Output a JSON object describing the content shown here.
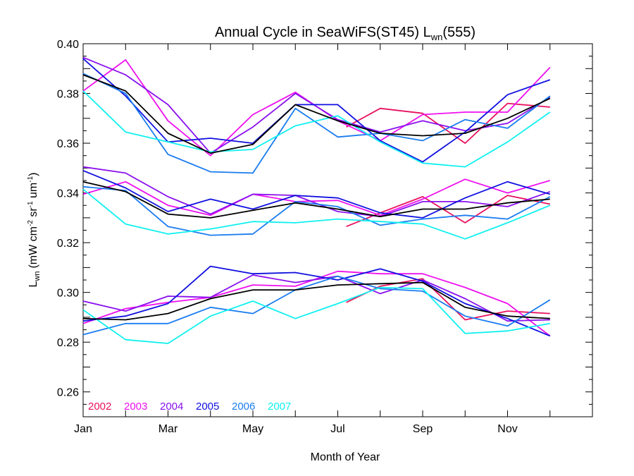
{
  "chart_data": {
    "type": "line",
    "title": {
      "main": "Annual Cycle in SeaWiFS(ST45) L",
      "sub": "wn",
      "tail": "(555)"
    },
    "xlabel": "Month of Year",
    "ylabel": {
      "main": "L",
      "sub": "wn",
      "unit": "(mW cm",
      "sup1": "-2",
      "mid1": " sr",
      "sup2": "-1",
      "mid2": " um",
      "sup3": "-1",
      "end": ")"
    },
    "xlim": [
      1,
      13
    ],
    "ylim": [
      0.25,
      0.4
    ],
    "x_ticks": [
      {
        "value": 1,
        "label": "Jan"
      },
      {
        "value": 3,
        "label": "Mar"
      },
      {
        "value": 5,
        "label": "May"
      },
      {
        "value": 7,
        "label": "Jul"
      },
      {
        "value": 9,
        "label": "Sep"
      },
      {
        "value": 11,
        "label": "Nov"
      }
    ],
    "y_ticks": [
      {
        "value": 0.26,
        "label": "0.26"
      },
      {
        "value": 0.28,
        "label": "0.28"
      },
      {
        "value": 0.3,
        "label": "0.30"
      },
      {
        "value": 0.32,
        "label": "0.32"
      },
      {
        "value": 0.34,
        "label": "0.34"
      },
      {
        "value": 0.36,
        "label": "0.36"
      },
      {
        "value": 0.38,
        "label": "0.38"
      },
      {
        "value": 0.4,
        "label": "0.40"
      }
    ],
    "legend": [
      {
        "name": "2002",
        "color": "#e8105e"
      },
      {
        "name": "2003",
        "color": "#ee10ee"
      },
      {
        "name": "2004",
        "color": "#8a10ee"
      },
      {
        "name": "2005",
        "color": "#1010e0"
      },
      {
        "name": "2006",
        "color": "#1a7cf0"
      },
      {
        "name": "2007",
        "color": "#10f0f0"
      }
    ],
    "legend_position": "bottom-left",
    "series": [
      {
        "year": "2002",
        "color": "#e8105e",
        "x": [
          7.2,
          8,
          9,
          10,
          11,
          12
        ],
        "y": [
          0.3665,
          0.374,
          0.372,
          0.36,
          0.376,
          0.3745
        ]
      },
      {
        "year": "2003",
        "color": "#ee10ee",
        "x": [
          1,
          2,
          3,
          4,
          5,
          6,
          7,
          8,
          9,
          10,
          11,
          12
        ],
        "y": [
          0.381,
          0.3935,
          0.369,
          0.355,
          0.3715,
          0.3805,
          0.369,
          0.361,
          0.3715,
          0.3725,
          0.3725,
          0.3905
        ]
      },
      {
        "year": "2004",
        "color": "#8a10ee",
        "x": [
          1,
          2,
          3,
          4,
          5,
          6,
          7,
          8,
          9,
          10,
          11,
          12
        ],
        "y": [
          0.3945,
          0.3875,
          0.3755,
          0.356,
          0.3665,
          0.38,
          0.3695,
          0.3645,
          0.369,
          0.365,
          0.368,
          0.3785
        ]
      },
      {
        "year": "2005",
        "color": "#1010e0",
        "x": [
          1,
          2,
          3,
          4,
          5,
          6,
          7,
          8,
          9,
          10,
          11,
          12
        ],
        "y": [
          0.394,
          0.379,
          0.3605,
          0.362,
          0.36,
          0.3755,
          0.3755,
          0.361,
          0.3525,
          0.3645,
          0.3795,
          0.3855
        ]
      },
      {
        "year": "2006",
        "color": "#1a7cf0",
        "x": [
          1,
          2,
          3,
          4,
          5,
          6,
          7,
          8,
          9,
          10,
          11,
          12
        ],
        "y": [
          0.388,
          0.38,
          0.3555,
          0.3485,
          0.348,
          0.374,
          0.3625,
          0.364,
          0.361,
          0.3695,
          0.366,
          0.379
        ]
      },
      {
        "year": "2007",
        "color": "#10f0f0",
        "x": [
          1,
          2,
          3,
          4,
          5,
          6,
          7,
          8,
          9,
          10,
          11,
          12
        ],
        "y": [
          0.381,
          0.3645,
          0.3605,
          0.3565,
          0.3575,
          0.367,
          0.371,
          0.3605,
          0.352,
          0.3505,
          0.3605,
          0.3725
        ]
      },
      {
        "year": "mean",
        "color": "#000000",
        "x": [
          1,
          2,
          3,
          4,
          5,
          6,
          7,
          8,
          9,
          10,
          11,
          12
        ],
        "y": [
          0.3875,
          0.381,
          0.364,
          0.356,
          0.3595,
          0.3755,
          0.369,
          0.364,
          0.363,
          0.364,
          0.37,
          0.378
        ]
      },
      {
        "year": "2002",
        "color": "#e8105e",
        "x": [
          7.2,
          8,
          9,
          10,
          11,
          12
        ],
        "y": [
          0.3265,
          0.332,
          0.3385,
          0.328,
          0.339,
          0.3355
        ]
      },
      {
        "year": "2003",
        "color": "#ee10ee",
        "x": [
          1,
          2,
          3,
          4,
          5,
          6,
          7,
          8,
          9,
          10,
          11,
          12
        ],
        "y": [
          0.3395,
          0.3445,
          0.335,
          0.331,
          0.3395,
          0.3365,
          0.337,
          0.331,
          0.3375,
          0.3455,
          0.34,
          0.345
        ]
      },
      {
        "year": "2004",
        "color": "#8a10ee",
        "x": [
          1,
          2,
          3,
          4,
          5,
          6,
          7,
          8,
          9,
          10,
          11,
          12
        ],
        "y": [
          0.3505,
          0.348,
          0.3385,
          0.3315,
          0.3395,
          0.339,
          0.3325,
          0.3305,
          0.3365,
          0.3365,
          0.3345,
          0.3405
        ]
      },
      {
        "year": "2005",
        "color": "#1010e0",
        "x": [
          1,
          2,
          3,
          4,
          5,
          6,
          7,
          8,
          9,
          10,
          11,
          12
        ],
        "y": [
          0.349,
          0.342,
          0.3325,
          0.3375,
          0.3335,
          0.339,
          0.338,
          0.332,
          0.33,
          0.338,
          0.3445,
          0.3395
        ]
      },
      {
        "year": "2006",
        "color": "#1a7cf0",
        "x": [
          1,
          2,
          3,
          4,
          5,
          6,
          7,
          8,
          9,
          10,
          11,
          12
        ],
        "y": [
          0.3425,
          0.341,
          0.3265,
          0.323,
          0.3235,
          0.3365,
          0.3345,
          0.327,
          0.3295,
          0.331,
          0.3295,
          0.3385
        ]
      },
      {
        "year": "2007",
        "color": "#10f0f0",
        "x": [
          1,
          2,
          3,
          4,
          5,
          6,
          7,
          8,
          9,
          10,
          11,
          12
        ],
        "y": [
          0.3415,
          0.3275,
          0.3235,
          0.3255,
          0.3285,
          0.328,
          0.3295,
          0.3285,
          0.3275,
          0.3215,
          0.328,
          0.335
        ]
      },
      {
        "year": "mean",
        "color": "#000000",
        "x": [
          1,
          2,
          3,
          4,
          5,
          6,
          7,
          8,
          9,
          10,
          11,
          12
        ],
        "y": [
          0.3445,
          0.3405,
          0.3315,
          0.33,
          0.333,
          0.336,
          0.3335,
          0.3305,
          0.3335,
          0.3335,
          0.336,
          0.3375
        ]
      },
      {
        "year": "2002",
        "color": "#e8105e",
        "x": [
          7.2,
          8,
          9,
          10,
          11,
          12
        ],
        "y": [
          0.296,
          0.3025,
          0.3055,
          0.289,
          0.2925,
          0.2915
        ]
      },
      {
        "year": "2003",
        "color": "#ee10ee",
        "x": [
          1,
          2,
          3,
          4,
          5,
          6,
          7,
          8,
          9,
          10,
          11,
          12
        ],
        "y": [
          0.2875,
          0.2935,
          0.296,
          0.298,
          0.303,
          0.3025,
          0.3085,
          0.3075,
          0.3075,
          0.302,
          0.2955,
          0.2825
        ]
      },
      {
        "year": "2004",
        "color": "#8a10ee",
        "x": [
          1,
          2,
          3,
          4,
          5,
          6,
          7,
          8,
          9,
          10,
          11,
          12
        ],
        "y": [
          0.2965,
          0.2925,
          0.2985,
          0.298,
          0.307,
          0.304,
          0.3065,
          0.2995,
          0.305,
          0.2975,
          0.2885,
          0.289
        ]
      },
      {
        "year": "2005",
        "color": "#1010e0",
        "x": [
          1,
          2,
          3,
          4,
          5,
          6,
          7,
          8,
          9,
          10,
          11,
          12
        ],
        "y": [
          0.2885,
          0.2905,
          0.2955,
          0.3105,
          0.3075,
          0.308,
          0.305,
          0.3095,
          0.3045,
          0.2955,
          0.2895,
          0.2825
        ]
      },
      {
        "year": "2006",
        "color": "#1a7cf0",
        "x": [
          1,
          2,
          3,
          4,
          5,
          6,
          7,
          8,
          9,
          10,
          11,
          12
        ],
        "y": [
          0.283,
          0.2875,
          0.2875,
          0.294,
          0.2915,
          0.301,
          0.3065,
          0.3015,
          0.3005,
          0.2905,
          0.2865,
          0.297
        ]
      },
      {
        "year": "2007",
        "color": "#10f0f0",
        "x": [
          1,
          2,
          3,
          4,
          5,
          6,
          7,
          8,
          9,
          10,
          11,
          12
        ],
        "y": [
          0.293,
          0.281,
          0.2795,
          0.2905,
          0.2965,
          0.2895,
          0.2955,
          0.302,
          0.3015,
          0.2835,
          0.2845,
          0.2875
        ]
      },
      {
        "year": "mean",
        "color": "#000000",
        "x": [
          1,
          2,
          3,
          4,
          5,
          6,
          7,
          8,
          9,
          10,
          11,
          12
        ],
        "y": [
          0.2895,
          0.289,
          0.2915,
          0.2975,
          0.301,
          0.301,
          0.303,
          0.3035,
          0.304,
          0.294,
          0.2905,
          0.2895
        ]
      }
    ]
  }
}
